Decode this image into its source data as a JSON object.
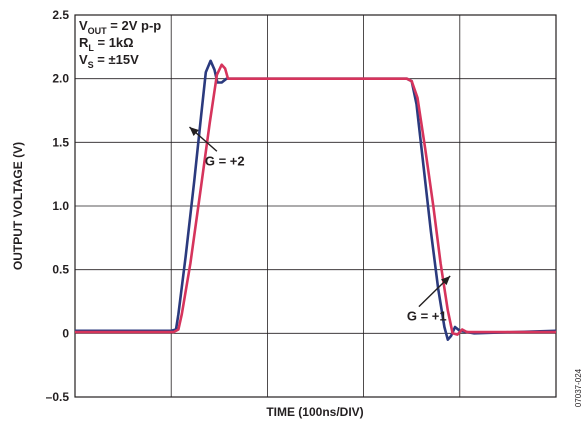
{
  "chart_data": {
    "type": "line",
    "title": "",
    "xlabel": "TIME (100ns/DIV)",
    "ylabel": "OUTPUT VOLTAGE (V)",
    "ylim": [
      -0.5,
      2.5
    ],
    "xlim": [
      0,
      1000
    ],
    "x_unit_per_div": "100ns",
    "grid": true,
    "yticks": [
      {
        "value": 2.5,
        "label": "2.5"
      },
      {
        "value": 2.0,
        "label": "2.0"
      },
      {
        "value": 1.5,
        "label": "1.5"
      },
      {
        "value": 1.0,
        "label": "1.0"
      },
      {
        "value": 0.5,
        "label": "0.5"
      },
      {
        "value": 0,
        "label": "0"
      },
      {
        "value": -0.5,
        "label": "–0.5"
      }
    ],
    "legend_box": {
      "line1_main": "V",
      "line1_sub": "OUT",
      "line1_rest": " = 2V p-p",
      "line2_main": "R",
      "line2_sub": "L",
      "line2_rest": " = 1kΩ",
      "line3_main": "V",
      "line3_sub": "S",
      "line3_rest": " = ±15V"
    },
    "series": [
      {
        "name": "G = +1",
        "color": "#2b3a7e",
        "points": [
          [
            0,
            0.02
          ],
          [
            200,
            0.02
          ],
          [
            210,
            0.03
          ],
          [
            215,
            0.15
          ],
          [
            230,
            0.6
          ],
          [
            248,
            1.2
          ],
          [
            262,
            1.7
          ],
          [
            272,
            2.05
          ],
          [
            282,
            2.14
          ],
          [
            290,
            2.07
          ],
          [
            296,
            1.97
          ],
          [
            305,
            1.97
          ],
          [
            315,
            2.0
          ],
          [
            480,
            2.0
          ],
          [
            690,
            2.0
          ],
          [
            700,
            1.98
          ],
          [
            710,
            1.8
          ],
          [
            725,
            1.3
          ],
          [
            740,
            0.8
          ],
          [
            755,
            0.35
          ],
          [
            768,
            0.05
          ],
          [
            775,
            -0.05
          ],
          [
            782,
            -0.02
          ],
          [
            790,
            0.05
          ],
          [
            800,
            0.02
          ],
          [
            830,
            0.0
          ],
          [
            1000,
            0.02
          ]
        ]
      },
      {
        "name": "G = +2",
        "color": "#d6345c",
        "points": [
          [
            0,
            0.01
          ],
          [
            205,
            0.01
          ],
          [
            215,
            0.03
          ],
          [
            222,
            0.15
          ],
          [
            240,
            0.55
          ],
          [
            262,
            1.15
          ],
          [
            280,
            1.65
          ],
          [
            295,
            2.03
          ],
          [
            305,
            2.11
          ],
          [
            312,
            2.08
          ],
          [
            318,
            2.0
          ],
          [
            330,
            2.0
          ],
          [
            690,
            2.0
          ],
          [
            700,
            1.98
          ],
          [
            712,
            1.85
          ],
          [
            728,
            1.45
          ],
          [
            745,
            1.0
          ],
          [
            760,
            0.55
          ],
          [
            775,
            0.18
          ],
          [
            785,
            0.0
          ],
          [
            795,
            -0.01
          ],
          [
            805,
            0.03
          ],
          [
            815,
            0.01
          ],
          [
            1000,
            0.01
          ]
        ]
      }
    ],
    "annotations": [
      {
        "text": "G = +2",
        "x": 270,
        "y": 1.32,
        "arrow_to": [
          238,
          1.62
        ]
      },
      {
        "text": "G = +1",
        "x": 690,
        "y": 0.1,
        "arrow_to": [
          780,
          0.45
        ]
      }
    ],
    "figure_id": "07037-024"
  }
}
